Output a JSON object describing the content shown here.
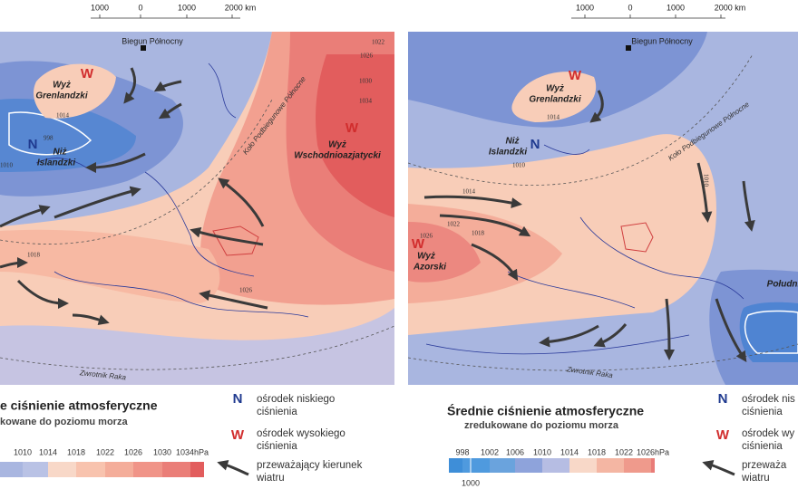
{
  "left_map": {
    "scale_bar": [
      "1000",
      "0",
      "1000",
      "2000 km"
    ],
    "north_pole": "Biegun Północny",
    "arctic_circle": "Koło Podbiegunowe Północne",
    "tropic": "Zwrotnik Raka",
    "centers": [
      {
        "symbol": "W",
        "name": [
          "Wyż",
          "Grenlandzki"
        ]
      },
      {
        "symbol": "N",
        "name": [
          "Niż",
          "Islandzki"
        ]
      },
      {
        "symbol": "W",
        "name": [
          "Wyż",
          "Wschodnioazjatycki"
        ]
      }
    ],
    "isobars": [
      "1022",
      "1026",
      "1030",
      "1034",
      "1014",
      "998",
      "1010",
      "1018",
      "1026"
    ],
    "legend": {
      "title": "e ciśnienie atmosferyczne",
      "subtitle": "kowane do poziomu morza",
      "scale": [
        "06",
        "1010",
        "1014",
        "1018",
        "1022",
        "1026",
        "1030",
        "1034hPa"
      ],
      "low": {
        "symbol": "N",
        "text": [
          "ośrodek niskiego",
          "ciśnienia"
        ]
      },
      "high": {
        "symbol": "W",
        "text": [
          "ośrodek wysokiego",
          "ciśnienia"
        ]
      },
      "wind": [
        "przeważający kierunek",
        "wiatru"
      ]
    }
  },
  "right_map": {
    "scale_bar": [
      "1000",
      "0",
      "1000",
      "2000 km"
    ],
    "north_pole": "Biegun Północny",
    "arctic_circle": "Koło Podbiegunowe Północne",
    "tropic": "Zwrotnik Raka",
    "centers": [
      {
        "symbol": "W",
        "name": [
          "Wyż",
          "Grenlandzki"
        ]
      },
      {
        "symbol": "N",
        "name": [
          "Niż",
          "Islandzki"
        ]
      },
      {
        "symbol": "W",
        "name": [
          "Wyż",
          "Azorski"
        ]
      },
      {
        "name": [
          "Południ"
        ]
      }
    ],
    "isobars": [
      "1014",
      "1010",
      "1014",
      "1022",
      "1018",
      "1026",
      "1010"
    ],
    "legend": {
      "title": "Średnie ciśnienie atmosferyczne",
      "subtitle": "zredukowane do poziomu morza",
      "scale": [
        "998",
        "1002",
        "1006",
        "1010",
        "1014",
        "1018",
        "1022",
        "1026hPa"
      ],
      "scale_extra": "1000",
      "low": {
        "symbol": "N",
        "text": [
          "ośrodek nis",
          "ciśnienia"
        ]
      },
      "high": {
        "symbol": "W",
        "text": [
          "ośrodek wy",
          "ciśnienia"
        ]
      },
      "wind": [
        "przeważa",
        "wiatru"
      ]
    }
  }
}
